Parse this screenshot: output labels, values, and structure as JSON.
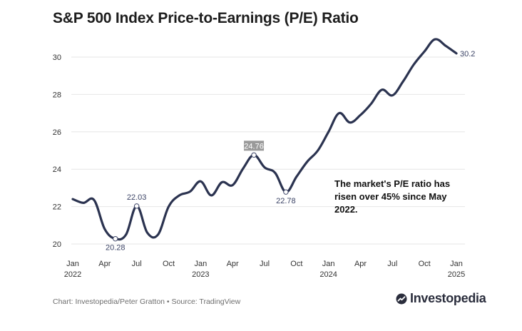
{
  "chart_data": {
    "type": "line",
    "title": "S&P 500 Index Price-to-Earnings (P/E) Ratio",
    "xlabel": "",
    "ylabel": "",
    "ylim": [
      20,
      31
    ],
    "yticks": [
      20,
      22,
      24,
      26,
      28,
      30
    ],
    "x_ticks": [
      {
        "month": 0,
        "label": "Jan",
        "year": "2022"
      },
      {
        "month": 3,
        "label": "Apr",
        "year": ""
      },
      {
        "month": 6,
        "label": "Jul",
        "year": ""
      },
      {
        "month": 9,
        "label": "Oct",
        "year": ""
      },
      {
        "month": 12,
        "label": "Jan",
        "year": "2023"
      },
      {
        "month": 15,
        "label": "Apr",
        "year": ""
      },
      {
        "month": 18,
        "label": "Jul",
        "year": ""
      },
      {
        "month": 21,
        "label": "Oct",
        "year": ""
      },
      {
        "month": 24,
        "label": "Jan",
        "year": "2024"
      },
      {
        "month": 27,
        "label": "Apr",
        "year": ""
      },
      {
        "month": 30,
        "label": "Jul",
        "year": ""
      },
      {
        "month": 33,
        "label": "Oct",
        "year": ""
      },
      {
        "month": 36,
        "label": "Jan",
        "year": "2025"
      }
    ],
    "series": [
      {
        "name": "S&P 500 P/E Ratio",
        "color": "#2b3350",
        "x": [
          0,
          1,
          2,
          3,
          4,
          5,
          6,
          7,
          8,
          9,
          10,
          11,
          12,
          13,
          14,
          15,
          16,
          17,
          18,
          19,
          20,
          21,
          22,
          23,
          24,
          25,
          26,
          27,
          28,
          29,
          30,
          31,
          32,
          33,
          34,
          35,
          36
        ],
        "values": [
          22.4,
          22.2,
          22.35,
          20.8,
          20.28,
          20.5,
          22.03,
          20.6,
          20.5,
          22.0,
          22.6,
          22.8,
          23.35,
          22.6,
          23.3,
          23.15,
          24.05,
          24.76,
          24.1,
          23.8,
          22.78,
          23.6,
          24.4,
          25.0,
          26.0,
          27.0,
          26.5,
          26.9,
          27.5,
          28.25,
          27.95,
          28.7,
          29.6,
          30.3,
          30.95,
          30.6,
          30.2
        ]
      }
    ],
    "callouts": [
      {
        "x": 4,
        "value": 20.28,
        "label": "20.28",
        "position": "below",
        "highlight": false
      },
      {
        "x": 6,
        "value": 22.03,
        "label": "22.03",
        "position": "above",
        "highlight": false
      },
      {
        "x": 17,
        "value": 24.76,
        "label": "24.76",
        "position": "above",
        "highlight": true
      },
      {
        "x": 20,
        "value": 22.78,
        "label": "22.78",
        "position": "below",
        "highlight": false
      }
    ],
    "end_label": {
      "x": 36,
      "value": 30.2,
      "label": "30.2"
    },
    "annotation": "The market's P/E ratio has risen over 45% since May 2022.",
    "grid": true
  },
  "footer": {
    "source": "Chart: Investopedia/Peter Gratton • Source: TradingView",
    "brand": "Investopedia",
    "brand_icon": "investopedia-logo-icon"
  },
  "colors": {
    "line": "#2b3350",
    "grid": "#e6e6e6",
    "axis_text": "#333333",
    "callout_text": "#3c4466",
    "highlight_bg": "#9a9a9a"
  }
}
